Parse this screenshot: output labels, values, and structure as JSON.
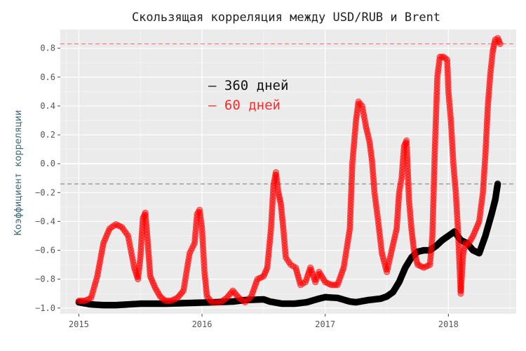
{
  "chart_data": {
    "type": "scatter",
    "title": "Скользящая корреляция между USD/RUB и Brent",
    "xlabel": "",
    "ylabel": "Коэффициент корреляции",
    "xlim": [
      2014.85,
      2018.55
    ],
    "ylim": [
      -1.04,
      0.93
    ],
    "x_ticks": [
      {
        "value": 2015,
        "label": "2015"
      },
      {
        "value": 2016,
        "label": "2016"
      },
      {
        "value": 2017,
        "label": "2017"
      },
      {
        "value": 2018,
        "label": "2018"
      }
    ],
    "y_ticks": [
      {
        "value": 0.8,
        "label": "0.8"
      },
      {
        "value": 0.6,
        "label": "0.6"
      },
      {
        "value": 0.4,
        "label": "0.4"
      },
      {
        "value": 0.2,
        "label": "0.2"
      },
      {
        "value": 0.0,
        "label": "0.0"
      },
      {
        "value": -0.2,
        "label": "−0.2"
      },
      {
        "value": -0.4,
        "label": "−0.4"
      },
      {
        "value": -0.6,
        "label": "−0.6"
      },
      {
        "value": -0.8,
        "label": "−0.8"
      },
      {
        "value": -1.0,
        "label": "−1.0"
      }
    ],
    "grid": true,
    "legend_position": "top-center",
    "background": "#ebebeb",
    "reference_lines": [
      {
        "y": 0.83,
        "color": "#ff6b6b",
        "style": "dashed"
      },
      {
        "y": -0.14,
        "color": "#777777",
        "style": "dashed"
      }
    ],
    "series": [
      {
        "name": "360 дней",
        "color": "#000000",
        "points": [
          [
            2015.0,
            -0.96
          ],
          [
            2015.1,
            -0.975
          ],
          [
            2015.2,
            -0.98
          ],
          [
            2015.3,
            -0.98
          ],
          [
            2015.4,
            -0.975
          ],
          [
            2015.5,
            -0.97
          ],
          [
            2015.7,
            -0.97
          ],
          [
            2015.9,
            -0.965
          ],
          [
            2016.1,
            -0.96
          ],
          [
            2016.25,
            -0.955
          ],
          [
            2016.35,
            -0.945
          ],
          [
            2016.5,
            -0.94
          ],
          [
            2016.55,
            -0.955
          ],
          [
            2016.65,
            -0.97
          ],
          [
            2016.75,
            -0.97
          ],
          [
            2016.85,
            -0.96
          ],
          [
            2016.95,
            -0.935
          ],
          [
            2017.0,
            -0.925
          ],
          [
            2017.1,
            -0.93
          ],
          [
            2017.2,
            -0.955
          ],
          [
            2017.25,
            -0.96
          ],
          [
            2017.35,
            -0.945
          ],
          [
            2017.45,
            -0.935
          ],
          [
            2017.5,
            -0.92
          ],
          [
            2017.55,
            -0.89
          ],
          [
            2017.6,
            -0.82
          ],
          [
            2017.65,
            -0.72
          ],
          [
            2017.7,
            -0.65
          ],
          [
            2017.75,
            -0.61
          ],
          [
            2017.8,
            -0.6
          ],
          [
            2017.85,
            -0.6
          ],
          [
            2017.9,
            -0.57
          ],
          [
            2017.95,
            -0.53
          ],
          [
            2018.0,
            -0.5
          ],
          [
            2018.05,
            -0.47
          ],
          [
            2018.1,
            -0.53
          ],
          [
            2018.15,
            -0.55
          ],
          [
            2018.2,
            -0.6
          ],
          [
            2018.25,
            -0.62
          ],
          [
            2018.3,
            -0.5
          ],
          [
            2018.35,
            -0.35
          ],
          [
            2018.38,
            -0.25
          ],
          [
            2018.4,
            -0.14
          ]
        ]
      },
      {
        "name": "60 дней",
        "color": "#ff0000",
        "points": [
          [
            2015.0,
            -0.95
          ],
          [
            2015.05,
            -0.95
          ],
          [
            2015.1,
            -0.93
          ],
          [
            2015.15,
            -0.78
          ],
          [
            2015.2,
            -0.55
          ],
          [
            2015.25,
            -0.45
          ],
          [
            2015.3,
            -0.42
          ],
          [
            2015.35,
            -0.44
          ],
          [
            2015.4,
            -0.5
          ],
          [
            2015.45,
            -0.72
          ],
          [
            2015.48,
            -0.8
          ],
          [
            2015.5,
            -0.65
          ],
          [
            2015.52,
            -0.38
          ],
          [
            2015.54,
            -0.34
          ],
          [
            2015.56,
            -0.55
          ],
          [
            2015.58,
            -0.78
          ],
          [
            2015.62,
            -0.86
          ],
          [
            2015.66,
            -0.92
          ],
          [
            2015.7,
            -0.95
          ],
          [
            2015.75,
            -0.95
          ],
          [
            2015.8,
            -0.93
          ],
          [
            2015.85,
            -0.88
          ],
          [
            2015.88,
            -0.72
          ],
          [
            2015.9,
            -0.62
          ],
          [
            2015.94,
            -0.55
          ],
          [
            2015.96,
            -0.35
          ],
          [
            2015.98,
            -0.32
          ],
          [
            2016.0,
            -0.45
          ],
          [
            2016.02,
            -0.75
          ],
          [
            2016.04,
            -0.92
          ],
          [
            2016.08,
            -0.96
          ],
          [
            2016.15,
            -0.96
          ],
          [
            2016.2,
            -0.93
          ],
          [
            2016.25,
            -0.88
          ],
          [
            2016.3,
            -0.93
          ],
          [
            2016.35,
            -0.96
          ],
          [
            2016.4,
            -0.92
          ],
          [
            2016.45,
            -0.8
          ],
          [
            2016.5,
            -0.78
          ],
          [
            2016.53,
            -0.72
          ],
          [
            2016.56,
            -0.45
          ],
          [
            2016.58,
            -0.15
          ],
          [
            2016.6,
            -0.06
          ],
          [
            2016.62,
            -0.2
          ],
          [
            2016.64,
            -0.28
          ],
          [
            2016.66,
            -0.45
          ],
          [
            2016.68,
            -0.65
          ],
          [
            2016.72,
            -0.7
          ],
          [
            2016.76,
            -0.72
          ],
          [
            2016.8,
            -0.84
          ],
          [
            2016.84,
            -0.82
          ],
          [
            2016.88,
            -0.72
          ],
          [
            2016.92,
            -0.82
          ],
          [
            2016.95,
            -0.75
          ],
          [
            2017.0,
            -0.82
          ],
          [
            2017.05,
            -0.84
          ],
          [
            2017.1,
            -0.84
          ],
          [
            2017.15,
            -0.72
          ],
          [
            2017.2,
            -0.45
          ],
          [
            2017.22,
            0.0
          ],
          [
            2017.25,
            0.3
          ],
          [
            2017.27,
            0.43
          ],
          [
            2017.3,
            0.4
          ],
          [
            2017.33,
            0.26
          ],
          [
            2017.36,
            0.15
          ],
          [
            2017.38,
            0.02
          ],
          [
            2017.4,
            -0.2
          ],
          [
            2017.43,
            -0.4
          ],
          [
            2017.46,
            -0.62
          ],
          [
            2017.5,
            -0.75
          ],
          [
            2017.54,
            -0.6
          ],
          [
            2017.58,
            -0.45
          ],
          [
            2017.6,
            -0.2
          ],
          [
            2017.62,
            -0.1
          ],
          [
            2017.64,
            0.12
          ],
          [
            2017.66,
            0.16
          ],
          [
            2017.68,
            -0.25
          ],
          [
            2017.7,
            -0.45
          ],
          [
            2017.72,
            -0.6
          ],
          [
            2017.75,
            -0.7
          ],
          [
            2017.8,
            -0.72
          ],
          [
            2017.85,
            -0.7
          ],
          [
            2017.87,
            -0.5
          ],
          [
            2017.89,
            0.1
          ],
          [
            2017.91,
            0.6
          ],
          [
            2017.93,
            0.74
          ],
          [
            2017.96,
            0.74
          ],
          [
            2017.99,
            0.72
          ],
          [
            2018.0,
            0.5
          ],
          [
            2018.02,
            0.3
          ],
          [
            2018.04,
            0.0
          ],
          [
            2018.06,
            -0.2
          ],
          [
            2018.08,
            -0.5
          ],
          [
            2018.1,
            -0.9
          ],
          [
            2018.12,
            -0.62
          ],
          [
            2018.14,
            -0.55
          ],
          [
            2018.16,
            -0.56
          ],
          [
            2018.2,
            -0.5
          ],
          [
            2018.25,
            -0.4
          ],
          [
            2018.28,
            -0.2
          ],
          [
            2018.3,
            0.06
          ],
          [
            2018.32,
            0.4
          ],
          [
            2018.34,
            0.62
          ],
          [
            2018.36,
            0.78
          ],
          [
            2018.38,
            0.86
          ],
          [
            2018.4,
            0.87
          ],
          [
            2018.42,
            0.83
          ]
        ]
      }
    ]
  }
}
